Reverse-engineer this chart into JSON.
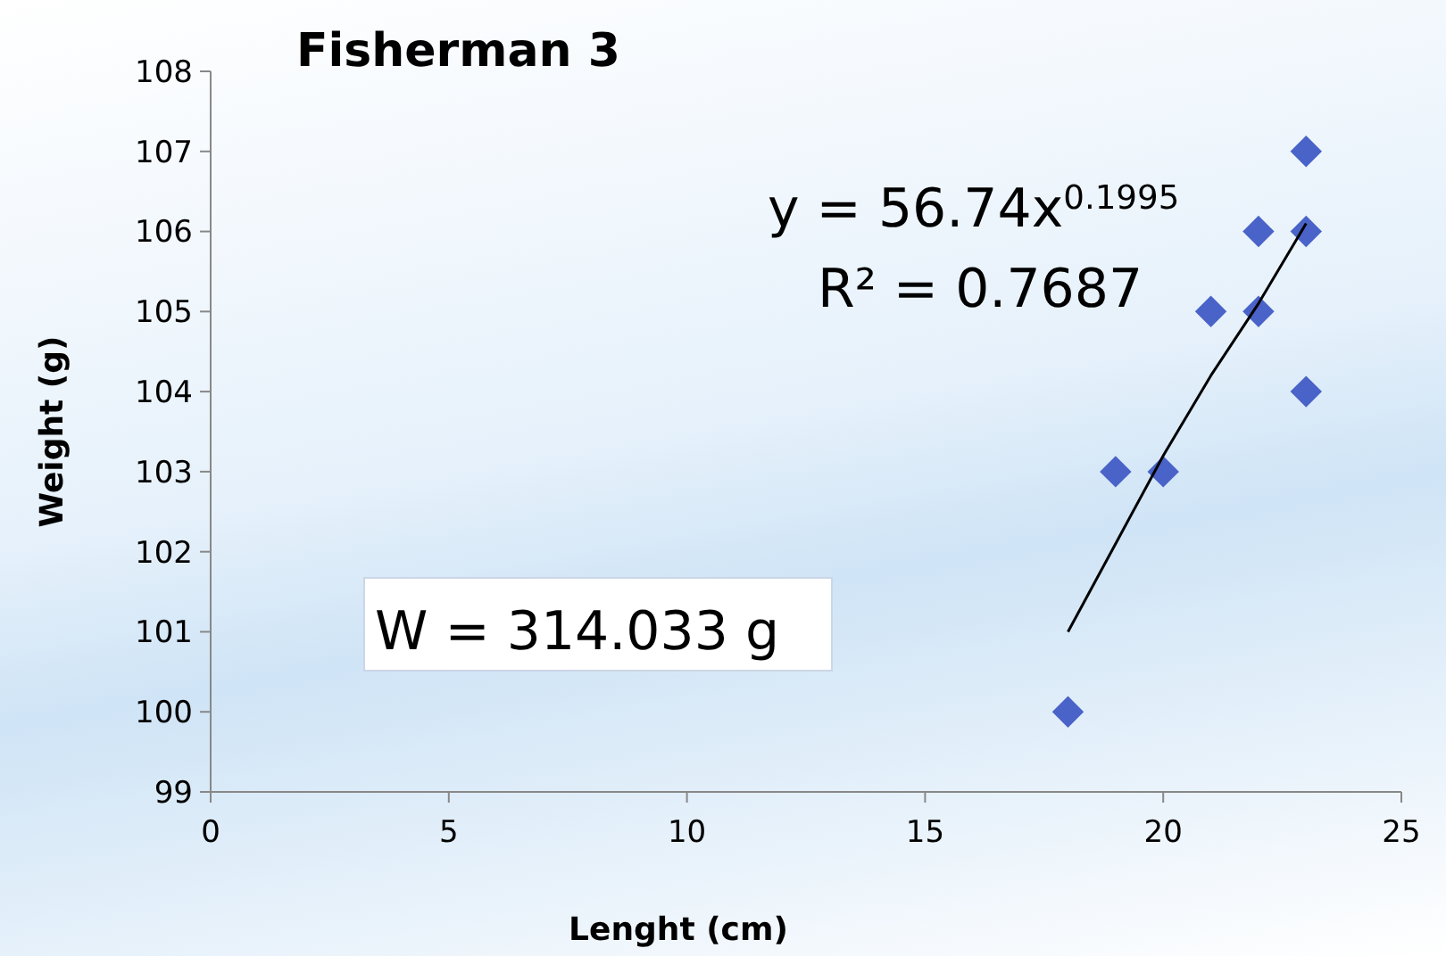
{
  "chart_data": {
    "type": "scatter",
    "title": "Fisherman 3",
    "xlabel": "Lenght (cm)",
    "ylabel": "Weight (g)",
    "xlim": [
      0,
      25
    ],
    "xticks": [
      0,
      5,
      10,
      15,
      20,
      25
    ],
    "ylim": [
      99,
      108
    ],
    "yticks": [
      99,
      100,
      101,
      102,
      103,
      104,
      105,
      106,
      107,
      108
    ],
    "grid": false,
    "marker": "diamond",
    "series": [
      {
        "color": "#4a63c8",
        "x": [
          18,
          19,
          20,
          21,
          22,
          22,
          23,
          23,
          23
        ],
        "values": [
          100,
          103,
          103,
          105,
          106,
          105,
          107,
          106,
          104
        ]
      },
      {
        "type": "line",
        "color": "#000000",
        "marker": "none",
        "x": [
          18,
          19,
          20,
          21,
          22,
          23
        ],
        "values": [
          101.0,
          102.1,
          103.2,
          104.2,
          105.1,
          106.1
        ]
      }
    ],
    "annotations": [
      "y = 56.74x$^{0.1995}$",
      "R² = 0.7687",
      "W = 314.033 g"
    ]
  }
}
